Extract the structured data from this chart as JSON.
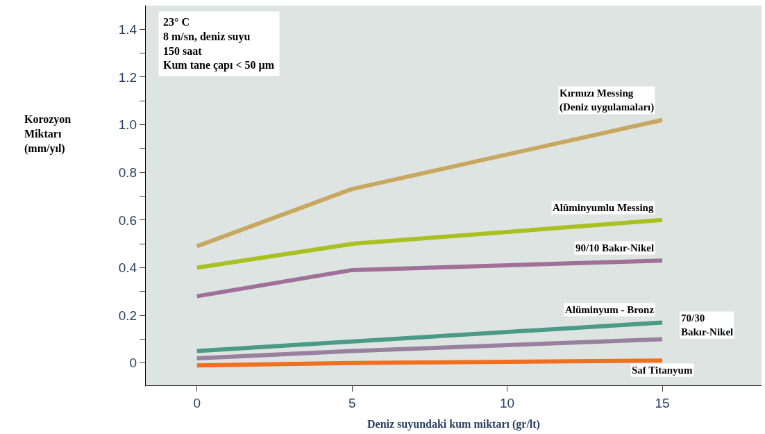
{
  "chart_data": {
    "type": "line",
    "xlabel": "Deniz suyundaki kum miktarı (gr/lt)",
    "ylabel": "Korozyon Miktarı (mm/yıl)",
    "x": [
      0,
      5,
      15
    ],
    "series": [
      {
        "name": "Kırmızı Messing (Deniz uygulamaları)",
        "color": "#c8a860",
        "values": [
          0.49,
          0.73,
          1.02
        ]
      },
      {
        "name": "Alüminyumlu Messing",
        "color": "#a8c020",
        "values": [
          0.4,
          0.5,
          0.6
        ]
      },
      {
        "name": "90/10 Bakır-Nikel",
        "color": "#a07098",
        "values": [
          0.28,
          0.39,
          0.43
        ]
      },
      {
        "name": "Alüminyum - Bronz",
        "color": "#4a9a88",
        "values": [
          0.05,
          0.09,
          0.17
        ]
      },
      {
        "name": "70/30 Bakır-Nikel",
        "color": "#9a80a0",
        "values": [
          0.02,
          0.05,
          0.1
        ]
      },
      {
        "name": "Saf Titanyum",
        "color": "#f07020",
        "values": [
          -0.01,
          0.0,
          0.01
        ]
      }
    ],
    "xlim": [
      -1.65,
      18.2
    ],
    "ylim": [
      -0.094,
      1.5
    ],
    "xticks": [
      0,
      5,
      10,
      15
    ],
    "yticks": [
      0,
      {
        "value": 0.1,
        "label": null
      },
      {
        "value": 0.2,
        "label": "0.2"
      },
      {
        "value": 0.3,
        "label": null
      },
      {
        "value": 0.4,
        "label": "0.4"
      },
      {
        "value": 0.5,
        "label": null
      },
      {
        "value": 0.6,
        "label": "0.6"
      },
      {
        "value": 0.7,
        "label": null
      },
      {
        "value": 0.8,
        "label": "0.8"
      },
      {
        "value": 0.9,
        "label": null
      },
      {
        "value": 1.0,
        "label": "1.0"
      },
      {
        "value": 1.1,
        "label": null
      },
      {
        "value": 1.2,
        "label": "1.2"
      },
      {
        "value": 1.3,
        "label": null
      },
      {
        "value": 1.4,
        "label": "1.4"
      }
    ],
    "annotations": [
      "23° C",
      "8 m/sn, deniz suyu",
      "150 saat",
      "Kum tane çapı < 50 µm"
    ],
    "grid": false,
    "legend": false,
    "marker": "none",
    "line_style": "solid"
  }
}
